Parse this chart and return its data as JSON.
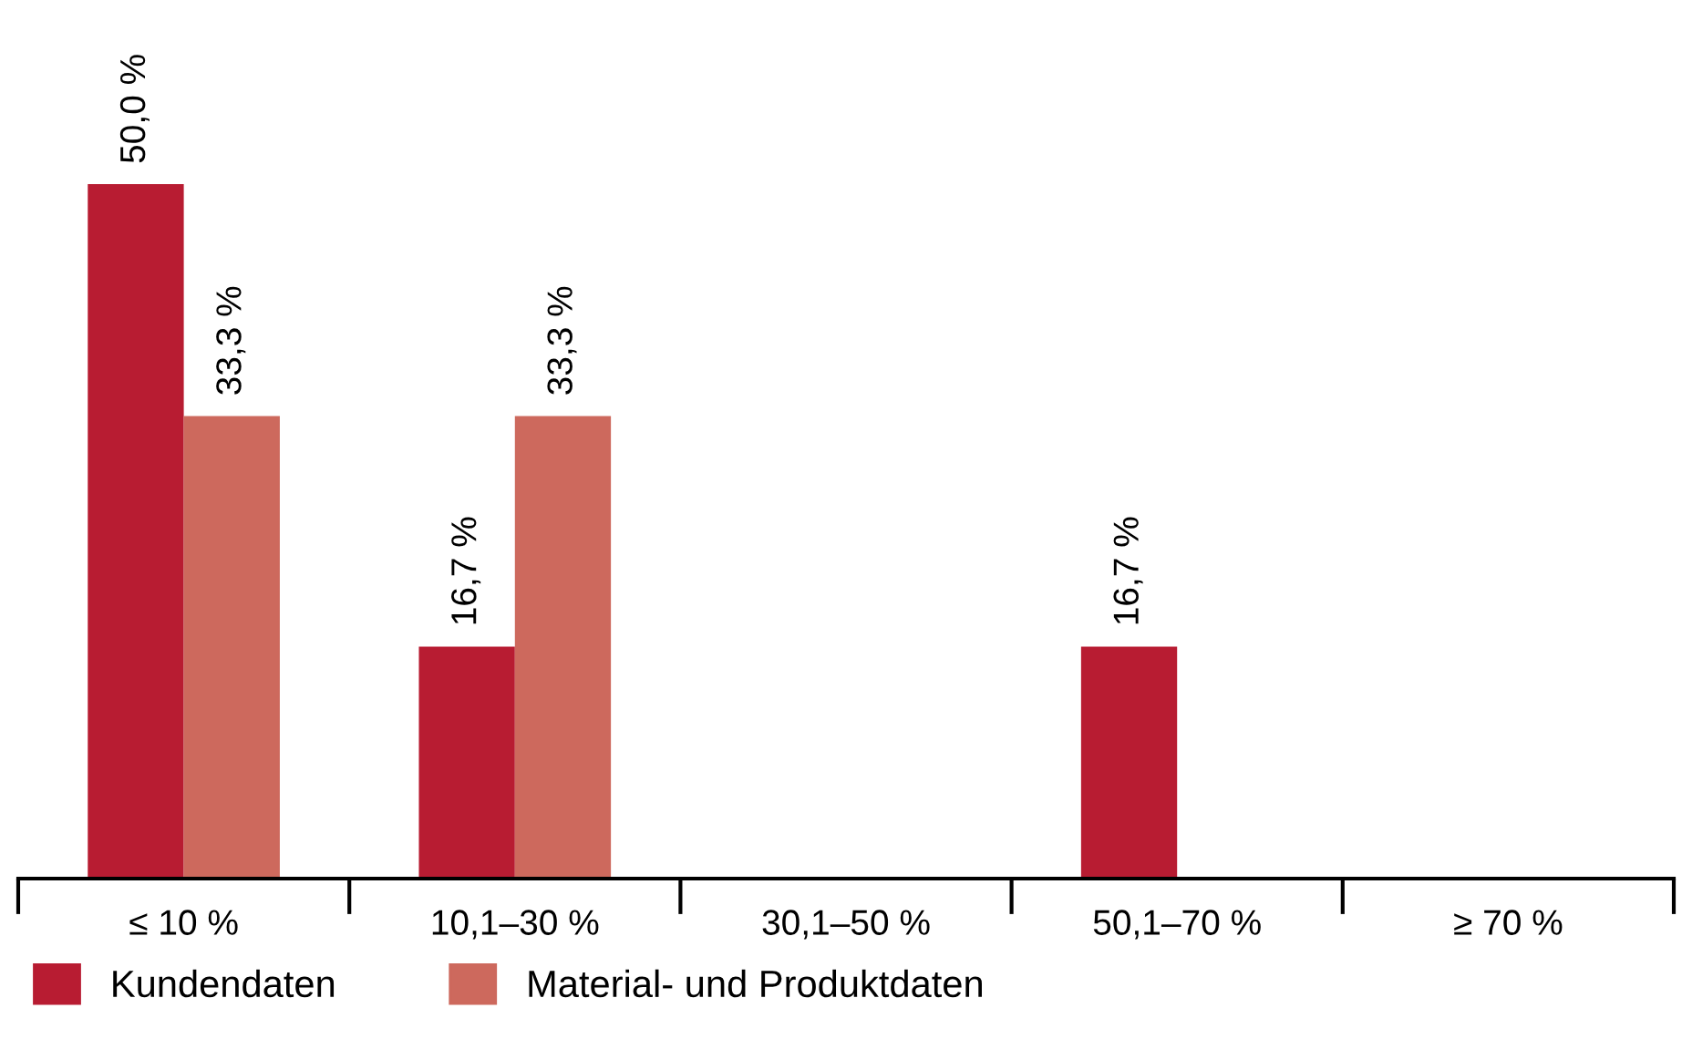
{
  "chart_data": {
    "type": "bar",
    "categories": [
      "≤ 10 %",
      "10,1–30 %",
      "30,1–50 %",
      "50,1–70 %",
      "≥ 70 %"
    ],
    "series": [
      {
        "name": "Kundendaten",
        "color": "#b81c32",
        "values": [
          50.0,
          16.7,
          null,
          16.7,
          null
        ],
        "value_labels": [
          "50,0 %",
          "16,7 %",
          null,
          "16,7 %",
          null
        ]
      },
      {
        "name": "Material- und Produktdaten",
        "color": "#cd695d",
        "values": [
          33.3,
          33.3,
          null,
          null,
          null
        ],
        "value_labels": [
          "33,3 %",
          "33,3 %",
          null,
          null,
          null
        ]
      }
    ],
    "legend": "bottom left",
    "grid": false
  }
}
